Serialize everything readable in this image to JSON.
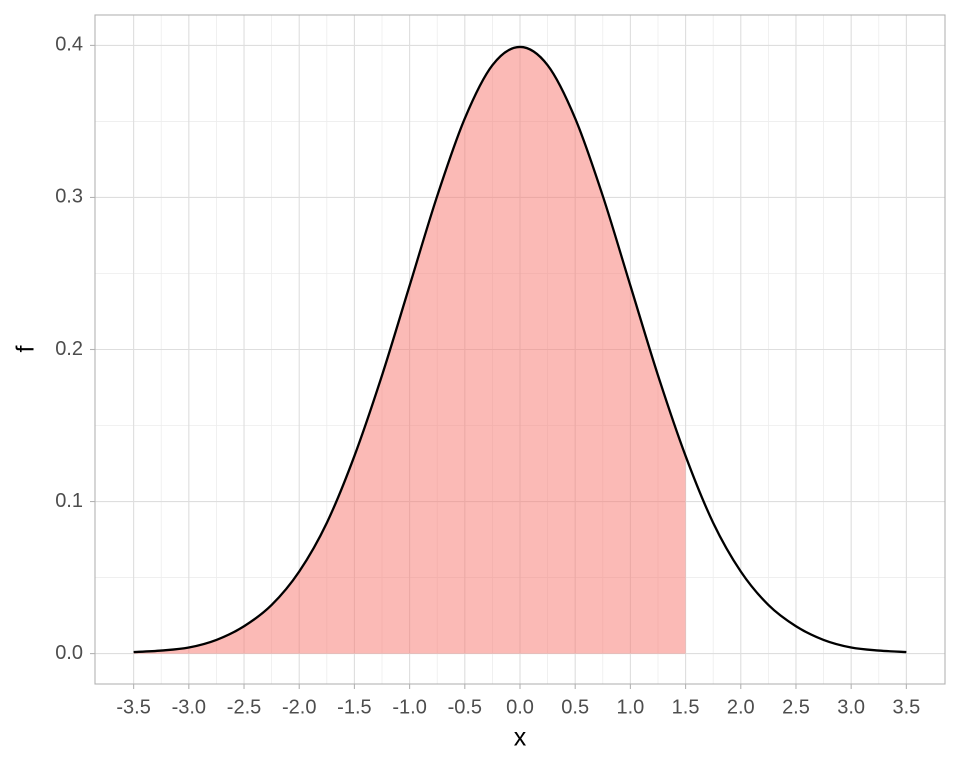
{
  "chart_data": {
    "type": "area-line",
    "x_label": "x",
    "y_label": "f",
    "xlim": [
      -3.85,
      3.85
    ],
    "ylim": [
      -0.02,
      0.42
    ],
    "xticks": [
      -3.5,
      {
        "value": -3,
        "label": "-3.0"
      },
      -2.5,
      {
        "value": -2,
        "label": "-2.0"
      },
      -1.5,
      {
        "value": -1,
        "label": "-1.0"
      },
      -0.5,
      {
        "value": 0,
        "label": "0.0"
      },
      0.5,
      {
        "value": 1,
        "label": "1.0"
      },
      1.5,
      {
        "value": 2,
        "label": "2.0"
      },
      2.5,
      {
        "value": 3,
        "label": "3.0"
      },
      3.5
    ],
    "yticks": [
      {
        "value": 0,
        "label": "0.0"
      },
      0.1,
      0.2,
      0.3,
      0.4
    ],
    "grid": true,
    "minor_grid": true,
    "series": [
      {
        "color": "#000000",
        "x": [
          -3.5,
          -3.25,
          -3,
          -2.75,
          -2.5,
          -2.25,
          -2,
          -1.75,
          -1.5,
          -1.25,
          -1,
          -0.75,
          -0.5,
          -0.25,
          0,
          0.25,
          0.5,
          0.75,
          1,
          1.25,
          1.5,
          1.75,
          2,
          2.25,
          2.5,
          2.75,
          3,
          3.25,
          3.5
        ],
        "values": [
          0.001,
          0.002,
          0.004,
          0.009,
          0.018,
          0.032,
          0.054,
          0.086,
          0.13,
          0.183,
          0.242,
          0.301,
          0.352,
          0.387,
          0.399,
          0.387,
          0.352,
          0.301,
          0.242,
          0.183,
          0.13,
          0.086,
          0.054,
          0.032,
          0.018,
          0.009,
          0.004,
          0.002,
          0.001
        ]
      }
    ],
    "area": {
      "color": "#f8766d",
      "opacity": 0.5,
      "x": [
        -3.5,
        -3.25,
        -3,
        -2.75,
        -2.5,
        -2.25,
        -2,
        -1.75,
        -1.5,
        -1.25,
        -1,
        -0.75,
        -0.5,
        -0.25,
        0,
        0.25,
        0.5,
        0.75,
        1,
        1.25,
        1.5
      ],
      "values": [
        0.001,
        0.002,
        0.004,
        0.009,
        0.018,
        0.032,
        0.054,
        0.086,
        0.13,
        0.183,
        0.242,
        0.301,
        0.352,
        0.387,
        0.399,
        0.387,
        0.352,
        0.301,
        0.242,
        0.183,
        0.13
      ]
    }
  }
}
